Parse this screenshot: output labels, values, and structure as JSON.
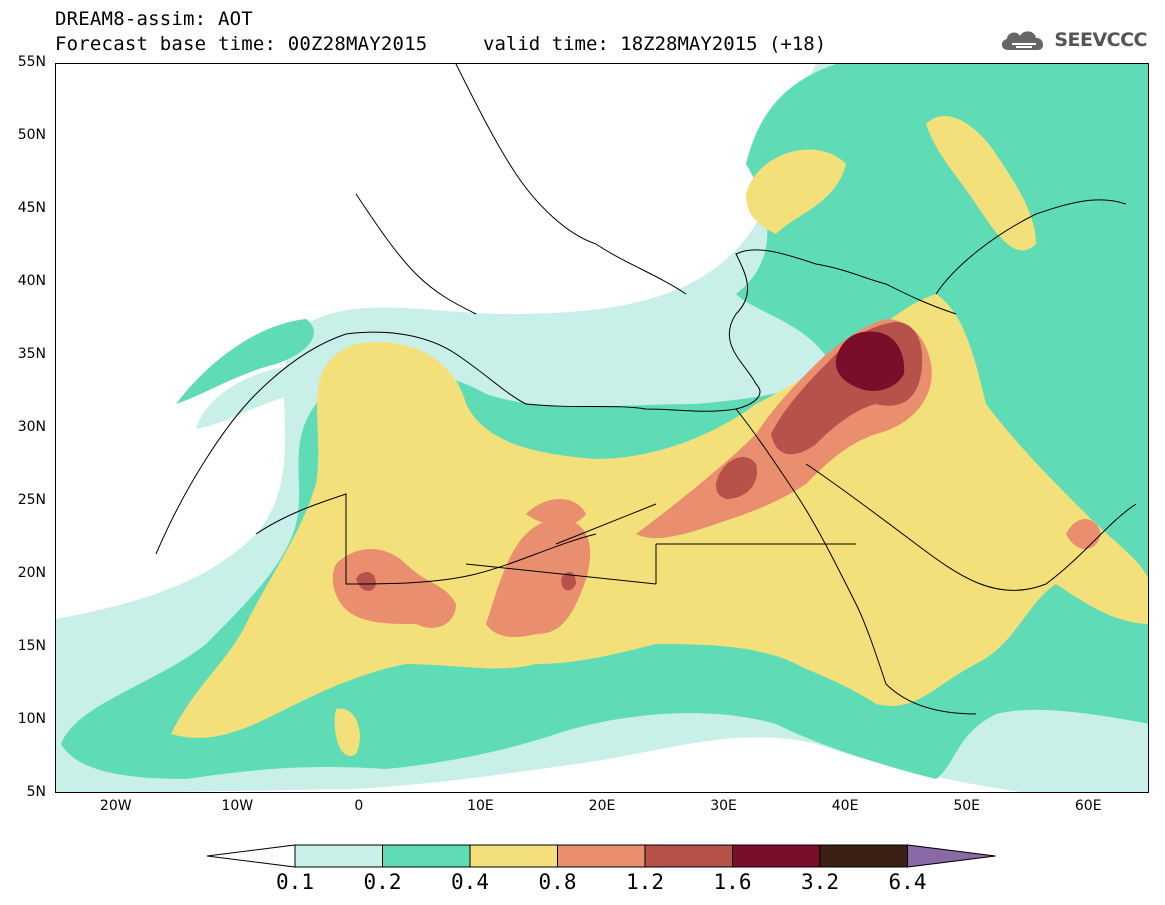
{
  "header": {
    "title": "DREAM8-assim: AOT",
    "base_time": "Forecast base time: 00Z28MAY2015",
    "valid_time": "valid time: 18Z28MAY2015 (+18)",
    "logo_text": "SEEVCCC"
  },
  "map": {
    "lat_range": [
      5,
      55
    ],
    "lon_range": [
      -25,
      65
    ],
    "lat_labels": [
      "55N",
      "50N",
      "45N",
      "40N",
      "35N",
      "30N",
      "25N",
      "20N",
      "15N",
      "10N",
      "5N"
    ],
    "lon_labels": [
      "20W",
      "10W",
      "0",
      "10E",
      "20E",
      "30E",
      "40E",
      "50E",
      "60E"
    ]
  },
  "colorbar": {
    "thresholds": [
      "0.1",
      "0.2",
      "0.4",
      "0.8",
      "1.2",
      "1.6",
      "3.2",
      "6.4"
    ],
    "colors": [
      "#c8f0e8",
      "#5fdcb6",
      "#f3e07a",
      "#e98e6e",
      "#b6524a",
      "#7a0e2a",
      "#3b2014",
      "#8a6aa6"
    ]
  }
}
